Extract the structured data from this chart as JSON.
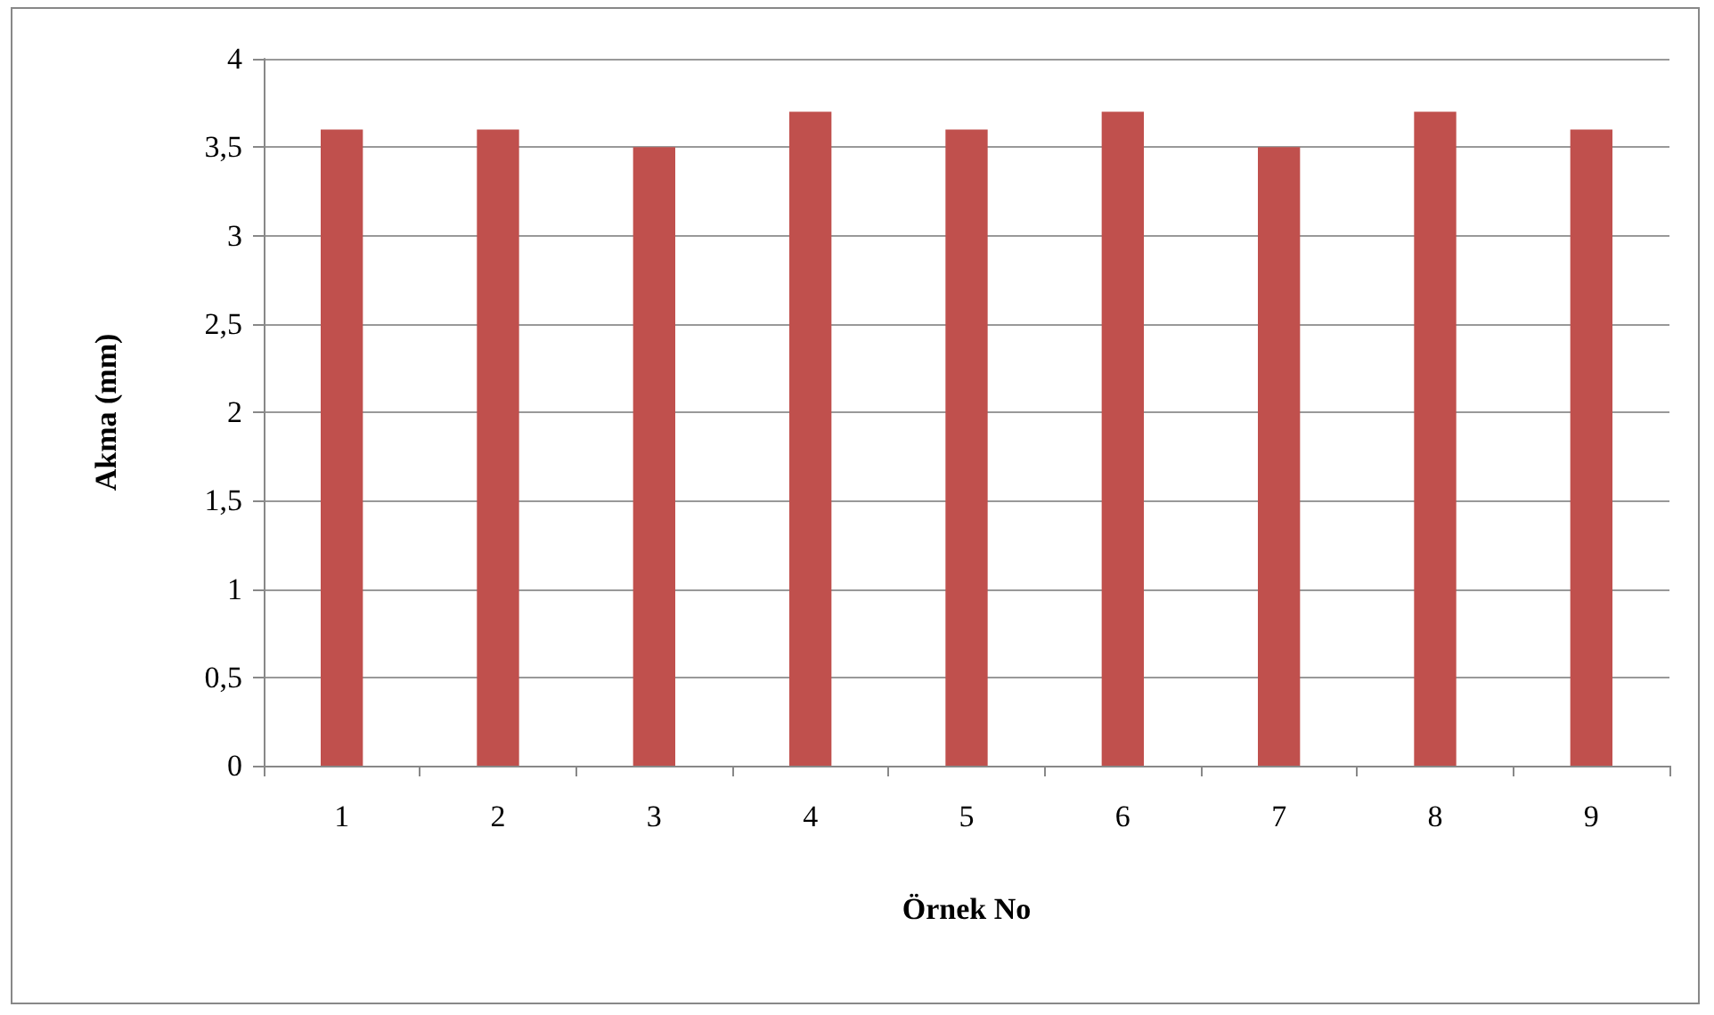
{
  "chart_data": {
    "type": "bar",
    "xlabel": "Örnek No",
    "ylabel": "Akma (mm)",
    "categories": [
      "1",
      "2",
      "3",
      "4",
      "5",
      "6",
      "7",
      "8",
      "9"
    ],
    "values": [
      3.6,
      3.6,
      3.5,
      3.7,
      3.6,
      3.7,
      3.5,
      3.7,
      3.6
    ],
    "color": "#c0504d",
    "ylim": [
      0,
      4
    ],
    "yticks": [
      0,
      {
        "value": 0.5,
        "label": "0,5"
      },
      1,
      {
        "value": 1.5,
        "label": "1,5"
      },
      2,
      {
        "value": 2.5,
        "label": "2,5"
      },
      3,
      {
        "value": 3.5,
        "label": "3,5"
      },
      4
    ],
    "grid": "y"
  }
}
